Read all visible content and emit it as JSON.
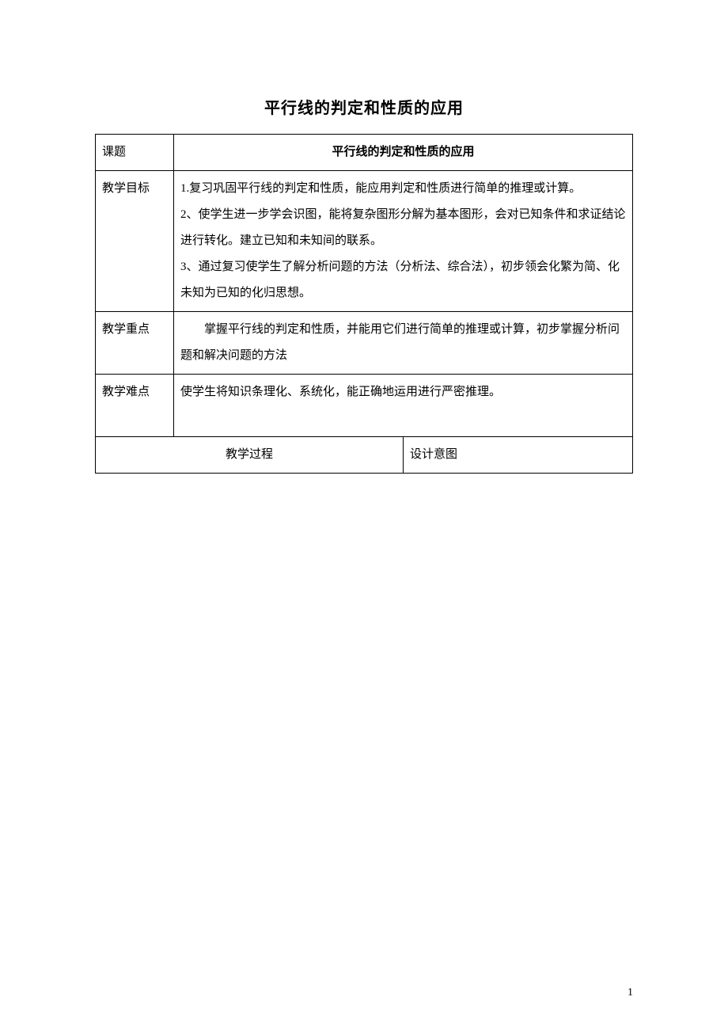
{
  "title": "平行线的判定和性质的应用",
  "rows": {
    "topic": {
      "label": "课题",
      "value": "平行线的判定和性质的应用"
    },
    "objectives": {
      "label": "教学目标",
      "lines": [
        "1.复习巩固平行线的判定和性质，能应用判定和性质进行简单的推理或计算。",
        "2、使学生进一步学会识图，能将复杂图形分解为基本图形，会对已知条件和求证结论进行转化。建立已知和未知间的联系。",
        "3、通过复习使学生了解分析问题的方法（分析法、综合法），初步领会化繁为简、化未知为已知的化归思想。"
      ]
    },
    "keypoint": {
      "label": "教学重点",
      "value": "　　掌握平行线的判定和性质，并能用它们进行简单的推理或计算，初步掌握分析问题和解决问题的方法"
    },
    "difficulty": {
      "label": "教学难点",
      "value": "使学生将知识条理化、系统化，能正确地运用进行严密推理。"
    },
    "process": {
      "label": "教学过程",
      "design_label": "设计意图"
    }
  },
  "page_number": "1"
}
